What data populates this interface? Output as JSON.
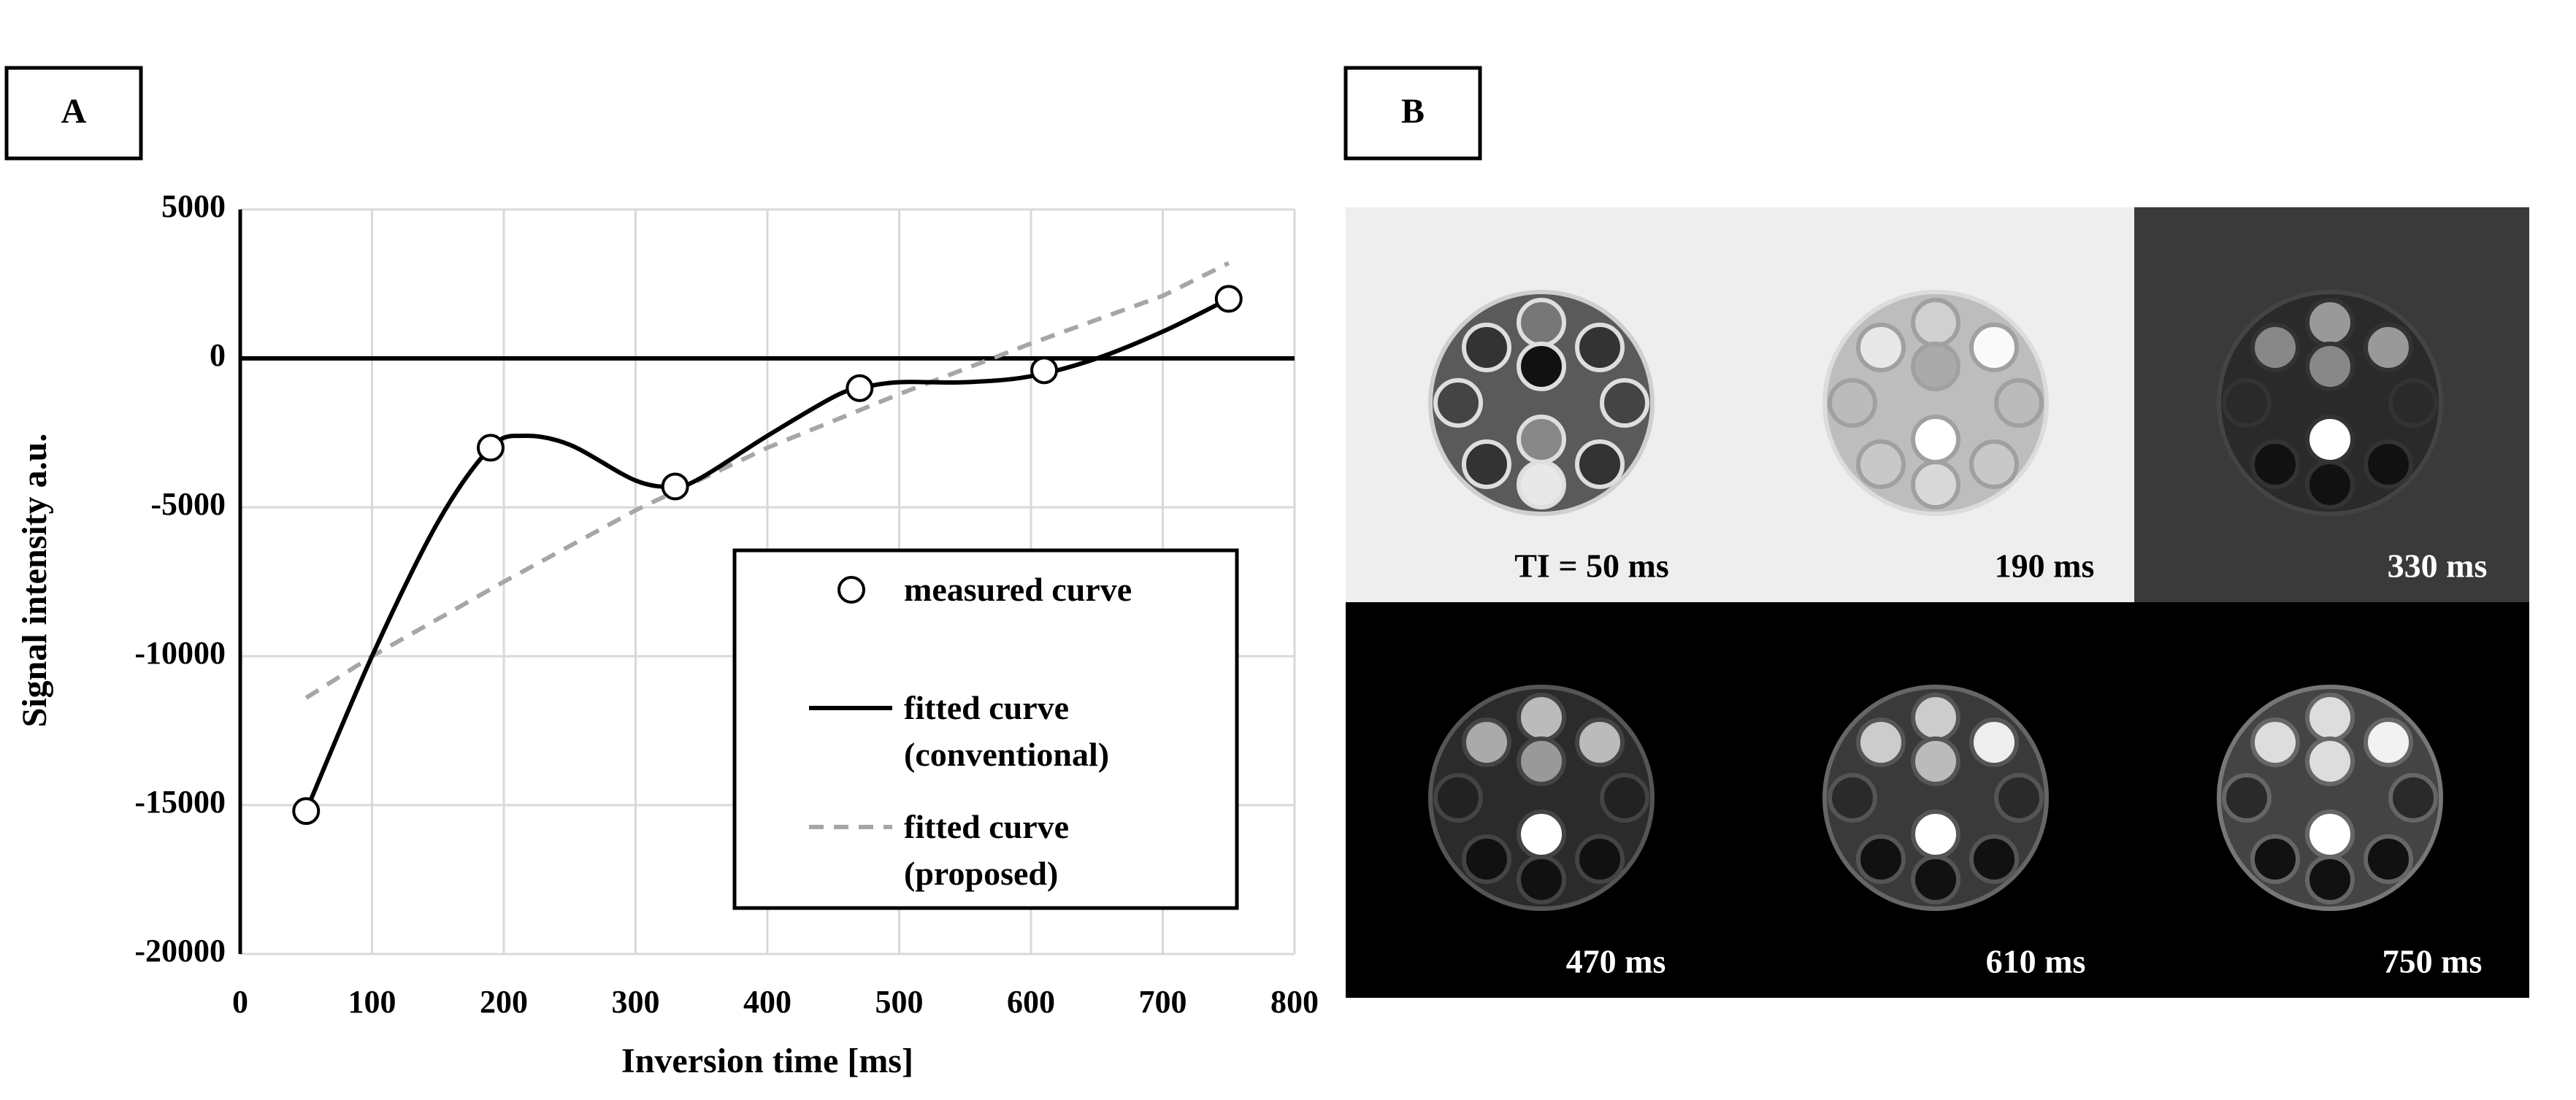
{
  "chart_data": {
    "type": "line",
    "panel_label": "A",
    "x_label": "Inversion time [ms]",
    "y_label": "Signal intensity a.u.",
    "xlim": [
      0,
      800
    ],
    "xticks": [
      0,
      100,
      200,
      300,
      400,
      500,
      600,
      700,
      800
    ],
    "ylim": [
      -20000,
      5000
    ],
    "yticks": [
      5000,
      0,
      -5000,
      -10000,
      -15000,
      -20000
    ],
    "grid": true,
    "legend": "lower right",
    "series": [
      {
        "name": "measured curve",
        "color": "#000000",
        "style": "markers",
        "x": [
          50,
          190,
          330,
          470,
          610,
          750
        ],
        "values": [
          -15200,
          -3000,
          -4300,
          -1000,
          -400,
          2000
        ]
      },
      {
        "name": "fitted curve (conventional)",
        "color": "#000000",
        "style": "solid",
        "x": [
          50,
          100,
          150,
          190,
          215,
          250,
          300,
          330,
          350,
          400,
          450,
          470,
          500,
          550,
          600,
          650,
          700,
          750
        ],
        "values": [
          -15200,
          -10000,
          -5500,
          -3000,
          -2600,
          -2900,
          -4100,
          -4300,
          -4000,
          -2600,
          -1300,
          -1000,
          -800,
          -800,
          -600,
          0,
          900,
          2000
        ]
      },
      {
        "name": "fitted curve (proposed)",
        "color": "#a6a6a6",
        "style": "dashed",
        "x": [
          50,
          100,
          200,
          300,
          400,
          500,
          600,
          700,
          750
        ],
        "values": [
          -11400,
          -10000,
          -7500,
          -5100,
          -3000,
          -1200,
          500,
          2100,
          3200
        ]
      }
    ]
  },
  "panel_b": {
    "panel_label": "B",
    "image_labels": [
      "TI = 50 ms",
      "190 ms",
      "330 ms",
      "470 ms",
      "610 ms",
      "750 ms"
    ]
  }
}
